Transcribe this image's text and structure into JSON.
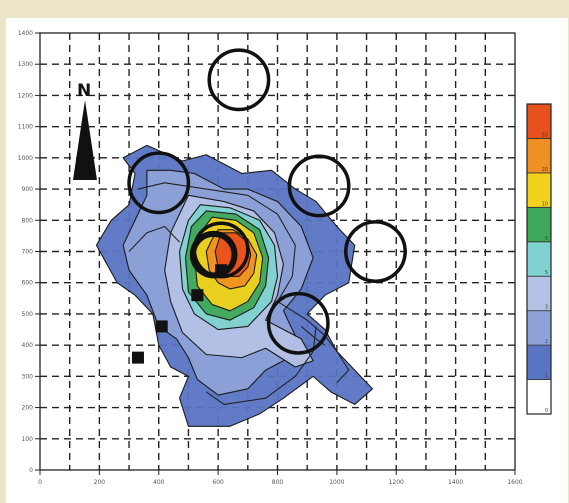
{
  "chart_data": {
    "type": "contour",
    "title": "",
    "xlabel": "",
    "ylabel": "",
    "xlim": [
      0,
      1600
    ],
    "ylim": [
      0,
      1400
    ],
    "x_ticks": [
      "0",
      "200",
      "400",
      "600",
      "800",
      "1000",
      "1200",
      "1400",
      "1600"
    ],
    "y_ticks": [
      "0",
      "100",
      "200",
      "300",
      "400",
      "500",
      "600",
      "700",
      "800",
      "900",
      "1000",
      "1100",
      "1200",
      "1300",
      "1400"
    ],
    "grid": true,
    "north_label": "N",
    "levels": [
      {
        "label": "0",
        "color": "#ffffff"
      },
      {
        "label": "1",
        "color": "#5a74c4"
      },
      {
        "label": "2",
        "color": "#8da2d8"
      },
      {
        "label": "3",
        "color": "#b4c2e6"
      },
      {
        "label": "5",
        "color": "#7fd2d0"
      },
      {
        "label": "8",
        "color": "#3fa858"
      },
      {
        "label": "10",
        "color": "#f2d21a"
      },
      {
        "label": "20",
        "color": "#f09022"
      },
      {
        "label": "50",
        "color": "#e8501e"
      }
    ],
    "contour_regions": [
      {
        "level": "1",
        "points": [
          [
            280,
            1000
          ],
          [
            360,
            1040
          ],
          [
            480,
            990
          ],
          [
            560,
            1010
          ],
          [
            680,
            950
          ],
          [
            780,
            960
          ],
          [
            860,
            900
          ],
          [
            930,
            860
          ],
          [
            1000,
            780
          ],
          [
            1060,
            720
          ],
          [
            1040,
            600
          ],
          [
            960,
            560
          ],
          [
            900,
            500
          ],
          [
            960,
            450
          ],
          [
            1000,
            380
          ],
          [
            1080,
            300
          ],
          [
            1120,
            260
          ],
          [
            1060,
            210
          ],
          [
            980,
            250
          ],
          [
            920,
            300
          ],
          [
            820,
            230
          ],
          [
            740,
            180
          ],
          [
            640,
            140
          ],
          [
            500,
            140
          ],
          [
            470,
            230
          ],
          [
            500,
            300
          ],
          [
            440,
            330
          ],
          [
            400,
            400
          ],
          [
            380,
            500
          ],
          [
            320,
            560
          ],
          [
            260,
            600
          ],
          [
            190,
            720
          ],
          [
            240,
            800
          ],
          [
            300,
            850
          ],
          [
            320,
            950
          ]
        ]
      },
      {
        "level": "2",
        "points": [
          [
            360,
            960
          ],
          [
            440,
            960
          ],
          [
            520,
            950
          ],
          [
            620,
            900
          ],
          [
            700,
            900
          ],
          [
            800,
            860
          ],
          [
            880,
            780
          ],
          [
            920,
            680
          ],
          [
            880,
            580
          ],
          [
            820,
            510
          ],
          [
            860,
            430
          ],
          [
            840,
            360
          ],
          [
            760,
            320
          ],
          [
            700,
            260
          ],
          [
            600,
            240
          ],
          [
            530,
            290
          ],
          [
            500,
            360
          ],
          [
            460,
            420
          ],
          [
            400,
            460
          ],
          [
            360,
            560
          ],
          [
            300,
            640
          ],
          [
            280,
            720
          ],
          [
            320,
            800
          ],
          [
            360,
            880
          ]
        ]
      },
      {
        "level": "3",
        "points": [
          [
            500,
            880
          ],
          [
            620,
            860
          ],
          [
            720,
            830
          ],
          [
            790,
            760
          ],
          [
            820,
            660
          ],
          [
            800,
            560
          ],
          [
            760,
            480
          ],
          [
            880,
            420
          ],
          [
            920,
            350
          ],
          [
            860,
            330
          ],
          [
            760,
            390
          ],
          [
            680,
            360
          ],
          [
            560,
            370
          ],
          [
            480,
            440
          ],
          [
            440,
            540
          ],
          [
            420,
            640
          ],
          [
            440,
            760
          ]
        ]
      },
      {
        "level": "5",
        "points": [
          [
            540,
            850
          ],
          [
            640,
            840
          ],
          [
            740,
            800
          ],
          [
            790,
            720
          ],
          [
            800,
            620
          ],
          [
            780,
            540
          ],
          [
            700,
            460
          ],
          [
            600,
            450
          ],
          [
            520,
            500
          ],
          [
            480,
            580
          ],
          [
            470,
            700
          ],
          [
            500,
            800
          ]
        ]
      },
      {
        "level": "8",
        "points": [
          [
            560,
            830
          ],
          [
            660,
            820
          ],
          [
            740,
            770
          ],
          [
            770,
            680
          ],
          [
            760,
            590
          ],
          [
            720,
            520
          ],
          [
            640,
            480
          ],
          [
            560,
            500
          ],
          [
            500,
            570
          ],
          [
            490,
            680
          ],
          [
            510,
            780
          ]
        ]
      },
      {
        "level": "10",
        "points": [
          [
            580,
            810
          ],
          [
            660,
            800
          ],
          [
            720,
            760
          ],
          [
            750,
            680
          ],
          [
            740,
            600
          ],
          [
            700,
            540
          ],
          [
            640,
            510
          ],
          [
            580,
            530
          ],
          [
            530,
            590
          ],
          [
            520,
            690
          ],
          [
            540,
            760
          ]
        ]
      },
      {
        "level": "20",
        "points": [
          [
            600,
            770
          ],
          [
            650,
            770
          ],
          [
            700,
            740
          ],
          [
            730,
            690
          ],
          [
            720,
            630
          ],
          [
            690,
            590
          ],
          [
            640,
            580
          ],
          [
            600,
            600
          ],
          [
            570,
            640
          ],
          [
            560,
            700
          ],
          [
            580,
            740
          ]
        ]
      },
      {
        "level": "50",
        "points": [
          [
            610,
            760
          ],
          [
            660,
            760
          ],
          [
            700,
            730
          ],
          [
            710,
            690
          ],
          [
            700,
            650
          ],
          [
            670,
            620
          ],
          [
            630,
            620
          ],
          [
            600,
            650
          ],
          [
            590,
            700
          ]
        ]
      }
    ],
    "contour_lines": [
      {
        "points": [
          [
            330,
            900
          ],
          [
            420,
            920
          ],
          [
            560,
            900
          ],
          [
            700,
            880
          ],
          [
            800,
            820
          ],
          [
            860,
            720
          ],
          [
            850,
            620
          ],
          [
            800,
            540
          ]
        ]
      },
      {
        "points": [
          [
            800,
            540
          ],
          [
            900,
            480
          ],
          [
            960,
            430
          ],
          [
            1000,
            380
          ],
          [
            1040,
            320
          ],
          [
            1000,
            280
          ]
        ]
      },
      {
        "points": [
          [
            560,
            250
          ],
          [
            620,
            210
          ],
          [
            760,
            230
          ],
          [
            860,
            300
          ],
          [
            920,
            380
          ],
          [
            930,
            460
          ]
        ]
      },
      {
        "points": [
          [
            300,
            700
          ],
          [
            360,
            760
          ],
          [
            420,
            780
          ],
          [
            470,
            730
          ]
        ]
      },
      {
        "points": [
          [
            880,
            460
          ],
          [
            930,
            420
          ],
          [
            960,
            400
          ]
        ]
      }
    ],
    "thick_circles": [
      {
        "x": 585,
        "y": 690,
        "r": 70,
        "w": 6
      },
      {
        "x": 610,
        "y": 705,
        "r": 90,
        "w": 3.5
      }
    ],
    "monitor_circles": [
      {
        "x": 670,
        "y": 1250,
        "r": 100
      },
      {
        "x": 400,
        "y": 920,
        "r": 100
      },
      {
        "x": 940,
        "y": 910,
        "r": 100
      },
      {
        "x": 1130,
        "y": 700,
        "r": 100
      },
      {
        "x": 870,
        "y": 470,
        "r": 100
      }
    ],
    "wells": [
      {
        "x": 610,
        "y": 640
      },
      {
        "x": 530,
        "y": 560
      },
      {
        "x": 410,
        "y": 460
      },
      {
        "x": 330,
        "y": 360
      }
    ]
  }
}
